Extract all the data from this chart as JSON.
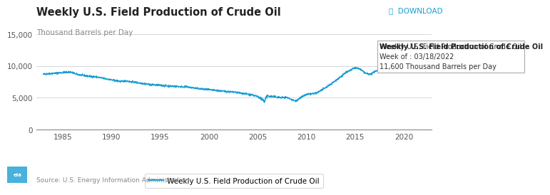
{
  "title": "Weekly U.S. Field Production of Crude Oil",
  "ylabel": "Thousand Barrels per Day",
  "download_text": "⤓  DOWNLOAD",
  "source_text": "Source: U.S. Energy Information Administration",
  "legend_label": "Weekly U.S. Field Production of Crude Oil",
  "annotation_title": "Weekly U.S. Field Production of Crude Oil",
  "annotation_week": "Week of : 03/18/2022",
  "annotation_value": "11,600 Thousand Barrels per Day",
  "line_color": "#1a9ed4",
  "highlight_color": "#c8e8f5",
  "ylim": [
    0,
    15000
  ],
  "yticks": [
    0,
    5000,
    10000,
    15000
  ],
  "ytick_labels": [
    "0",
    "5,000",
    "10,000",
    "15,000"
  ],
  "xlim": [
    1982.3,
    2022.8
  ],
  "xticks": [
    1985,
    1990,
    1995,
    2000,
    2005,
    2010,
    2015,
    2020
  ],
  "bg_color": "#ffffff",
  "grid_color": "#d0d0d0",
  "title_fontsize": 10.5,
  "ylabel_fontsize": 7.5,
  "tick_fontsize": 7.5,
  "legend_fontsize": 7.5,
  "ann_fontsize": 7.0,
  "download_fontsize": 7.5
}
